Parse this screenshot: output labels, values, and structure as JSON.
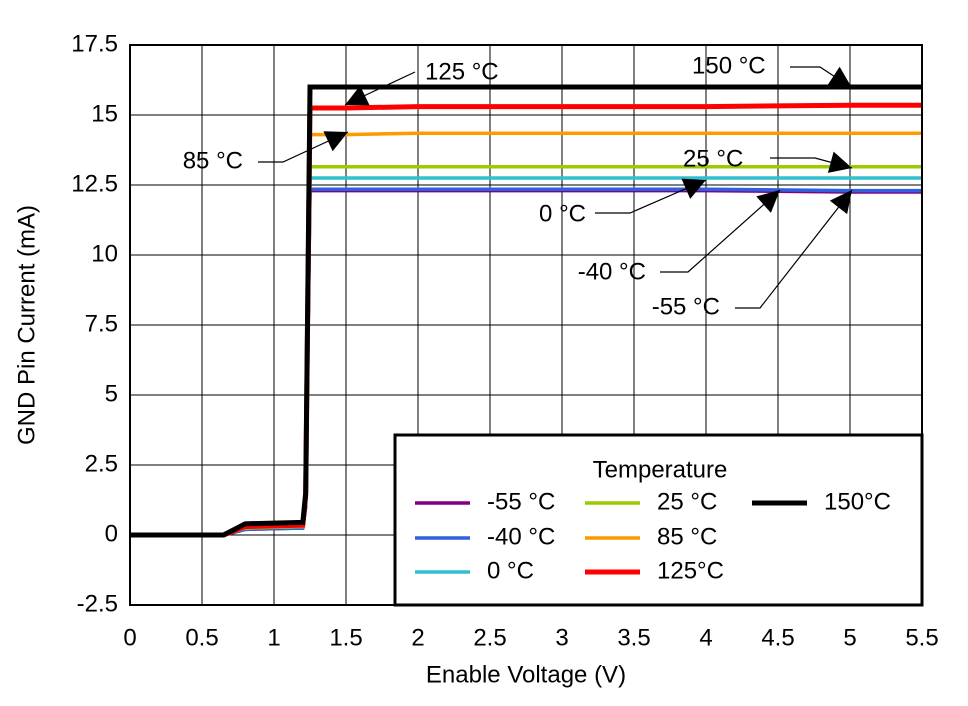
{
  "chart_data": {
    "type": "line",
    "xlabel": "Enable Voltage (V)",
    "ylabel": "GND Pin Current (mA)",
    "x": [
      0,
      0.65,
      0.8,
      1.2,
      1.22,
      1.25,
      1.5,
      2,
      3,
      4,
      5,
      5.5
    ],
    "series": [
      {
        "name": "-55 °C",
        "color": "#800080",
        "values": [
          0,
          0,
          0.2,
          0.25,
          1.0,
          12.3,
          12.3,
          12.3,
          12.3,
          12.3,
          12.25,
          12.25
        ]
      },
      {
        "name": "-40 °C",
        "color": "#3060e0",
        "values": [
          0,
          0,
          0.2,
          0.25,
          1.0,
          12.35,
          12.35,
          12.35,
          12.35,
          12.35,
          12.3,
          12.3
        ]
      },
      {
        "name": "0 °C",
        "color": "#30c0d0",
        "values": [
          0,
          0,
          0.25,
          0.3,
          1.1,
          12.75,
          12.75,
          12.75,
          12.75,
          12.75,
          12.75,
          12.75
        ]
      },
      {
        "name": "25 °C",
        "color": "#99cc00",
        "values": [
          0,
          0,
          0.25,
          0.3,
          1.2,
          13.15,
          13.15,
          13.15,
          13.15,
          13.15,
          13.15,
          13.15
        ]
      },
      {
        "name": "85 °C",
        "color": "#ff9900",
        "values": [
          0,
          0,
          0.3,
          0.35,
          1.3,
          14.3,
          14.3,
          14.35,
          14.35,
          14.35,
          14.35,
          14.35
        ]
      },
      {
        "name": "125°C",
        "color": "#ff0000",
        "values": [
          0,
          0,
          0.3,
          0.35,
          1.4,
          15.25,
          15.25,
          15.3,
          15.3,
          15.3,
          15.35,
          15.35
        ]
      },
      {
        "name": "150°C",
        "color": "#000000",
        "values": [
          0,
          0,
          0.4,
          0.45,
          1.5,
          16.0,
          16.0,
          16.0,
          16.0,
          16.0,
          16.0,
          16.0
        ]
      }
    ],
    "xlim": [
      0,
      5.5
    ],
    "xticks": [
      0,
      0.5,
      1,
      1.5,
      2,
      2.5,
      3,
      3.5,
      4,
      4.5,
      5,
      5.5
    ],
    "ylim": [
      -2.5,
      17.5
    ],
    "yticks": [
      -2.5,
      0,
      2.5,
      5,
      7.5,
      10,
      12.5,
      15,
      17.5
    ],
    "grid": true,
    "legend_title": "Temperature",
    "legend": "lower right",
    "annotations": [
      "125 °C",
      "150 °C",
      "85 °C",
      "25 °C",
      "0 °C",
      "-40 °C",
      "-55 °C"
    ]
  }
}
